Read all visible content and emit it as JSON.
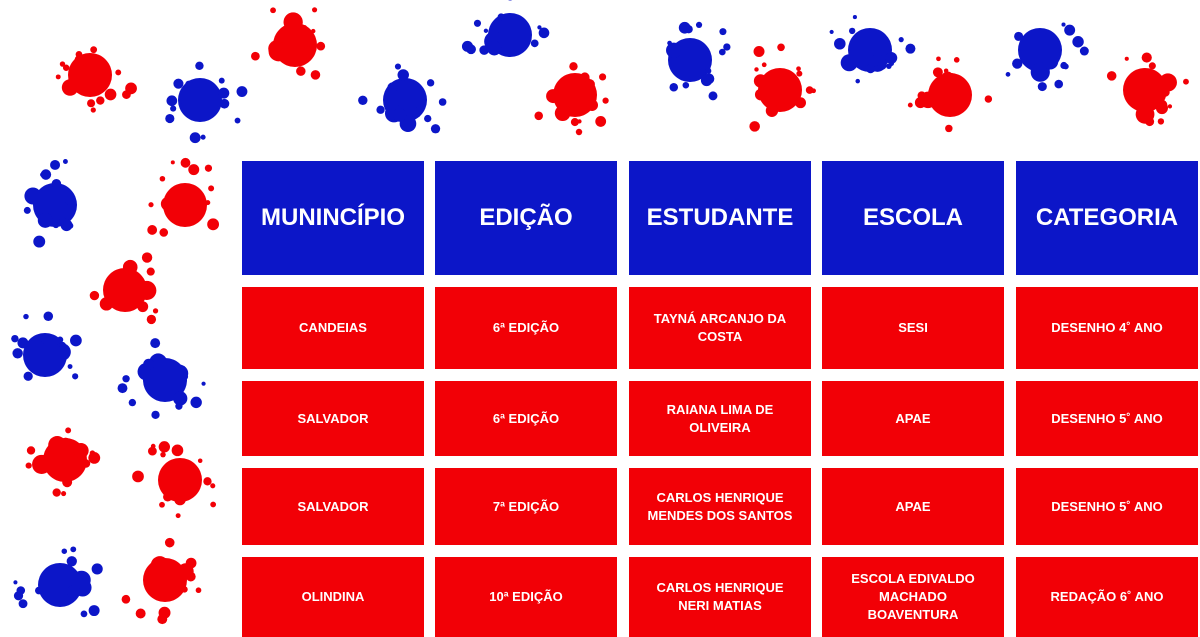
{
  "colors": {
    "header_bg": "#0c16c8",
    "cell_bg": "#f20006",
    "splat_red": "#f20006",
    "splat_blue": "#0c16c8"
  },
  "table": {
    "headers": [
      "MUNINCÍPIO",
      "EDIÇÃO",
      "ESTUDANTE",
      "ESCOLA",
      "CATEGORIA"
    ],
    "rows": [
      [
        "CANDEIAS",
        "6ª EDIÇÃO",
        "TAYNÁ ARCANJO DA COSTA",
        "SESI",
        "DESENHO 4˚ ANO"
      ],
      [
        "SALVADOR",
        "6ª EDIÇÃO",
        "RAIANA LIMA DE OLIVEIRA",
        "APAE",
        "DESENHO 5˚ ANO"
      ],
      [
        "SALVADOR",
        "7ª EDIÇÃO",
        "CARLOS HENRIQUE MENDES DOS SANTOS",
        "APAE",
        "DESENHO 5˚ ANO"
      ],
      [
        "OLINDINA",
        "10ª EDIÇÃO",
        "CARLOS HENRIQUE NERI MATIAS",
        "ESCOLA EDIVALDO MACHADO BOAVENTURA",
        "REDAÇÃO 6˚ ANO"
      ]
    ]
  }
}
